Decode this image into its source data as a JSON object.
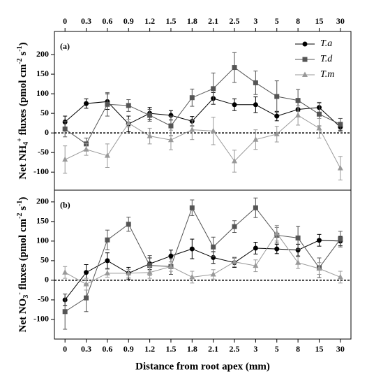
{
  "chart_data": [
    {
      "type": "line",
      "panel_label": "(a)",
      "ylabel": [
        "Net NH",
        "4",
        "+",
        " fluxes (pmol cm",
        "-2",
        " s",
        "-1",
        ")"
      ],
      "categories": [
        "0",
        "0.3",
        "0.6",
        "0.9",
        "1.2",
        "1.5",
        "1.8",
        "2.1",
        "2.5",
        "3",
        "5",
        "8",
        "15",
        "30"
      ],
      "xaxis_position": "top",
      "ylim": [
        -146,
        259
      ],
      "yticks": [
        -100,
        -50,
        0,
        50,
        100,
        150,
        200
      ],
      "hline": 0,
      "legend": "upper right",
      "series": [
        {
          "name": "T.a",
          "color": "#000000",
          "marker": "circle",
          "values": [
            28,
            75,
            80,
            23,
            50,
            45,
            30,
            88,
            72,
            72,
            43,
            60,
            65,
            15
          ],
          "errors": [
            15,
            12,
            20,
            20,
            15,
            12,
            12,
            15,
            15,
            20,
            12,
            18,
            12,
            10
          ]
        },
        {
          "name": "T.d",
          "color": "#555555",
          "marker": "square",
          "values": [
            10,
            -28,
            73,
            70,
            45,
            18,
            90,
            113,
            167,
            128,
            93,
            83,
            48,
            22
          ],
          "errors": [
            20,
            15,
            30,
            15,
            15,
            25,
            22,
            40,
            38,
            30,
            40,
            28,
            30,
            15
          ]
        },
        {
          "name": "T.m",
          "color": "#999999",
          "marker": "triangle",
          "values": [
            -68,
            -42,
            -58,
            25,
            -8,
            -18,
            8,
            5,
            -72,
            -17,
            -3,
            45,
            12,
            -90
          ],
          "errors": [
            35,
            15,
            30,
            10,
            20,
            25,
            25,
            35,
            28,
            25,
            20,
            25,
            25,
            30
          ]
        }
      ]
    },
    {
      "type": "line",
      "panel_label": "(b)",
      "ylabel": [
        "Net NO",
        "3",
        "-",
        " fluxes (pmol cm",
        "-2",
        " s",
        "-1",
        ")"
      ],
      "xlabel": "Distance from root apex (mm)",
      "categories": [
        "0",
        "0.3",
        "0.6",
        "0.9",
        "1.2",
        "1.5",
        "1.8",
        "2.1",
        "2.5",
        "3",
        "5",
        "8",
        "15",
        "30"
      ],
      "xaxis_position": "bottom",
      "ylim": [
        -150,
        230
      ],
      "yticks": [
        -100,
        -50,
        0,
        50,
        100,
        150,
        200
      ],
      "hline": 0,
      "series": [
        {
          "color": "#000000",
          "marker": "circle",
          "values": [
            -50,
            20,
            50,
            18,
            42,
            62,
            80,
            58,
            45,
            82,
            80,
            77,
            102,
            100
          ],
          "errors": [
            15,
            20,
            20,
            15,
            15,
            15,
            25,
            15,
            12,
            15,
            12,
            15,
            15,
            12
          ]
        },
        {
          "color": "#555555",
          "marker": "square",
          "values": [
            -80,
            -45,
            103,
            143,
            38,
            35,
            185,
            85,
            137,
            185,
            115,
            108,
            32,
            105
          ],
          "errors": [
            45,
            35,
            25,
            18,
            25,
            20,
            20,
            25,
            15,
            25,
            20,
            30,
            25,
            20
          ]
        },
        {
          "color": "#999999",
          "marker": "triangle",
          "values": [
            20,
            -10,
            18,
            18,
            20,
            35,
            8,
            15,
            47,
            37,
            120,
            45,
            30,
            8
          ],
          "errors": [
            15,
            15,
            10,
            10,
            15,
            12,
            15,
            12,
            12,
            15,
            20,
            15,
            15,
            15
          ]
        }
      ]
    }
  ]
}
